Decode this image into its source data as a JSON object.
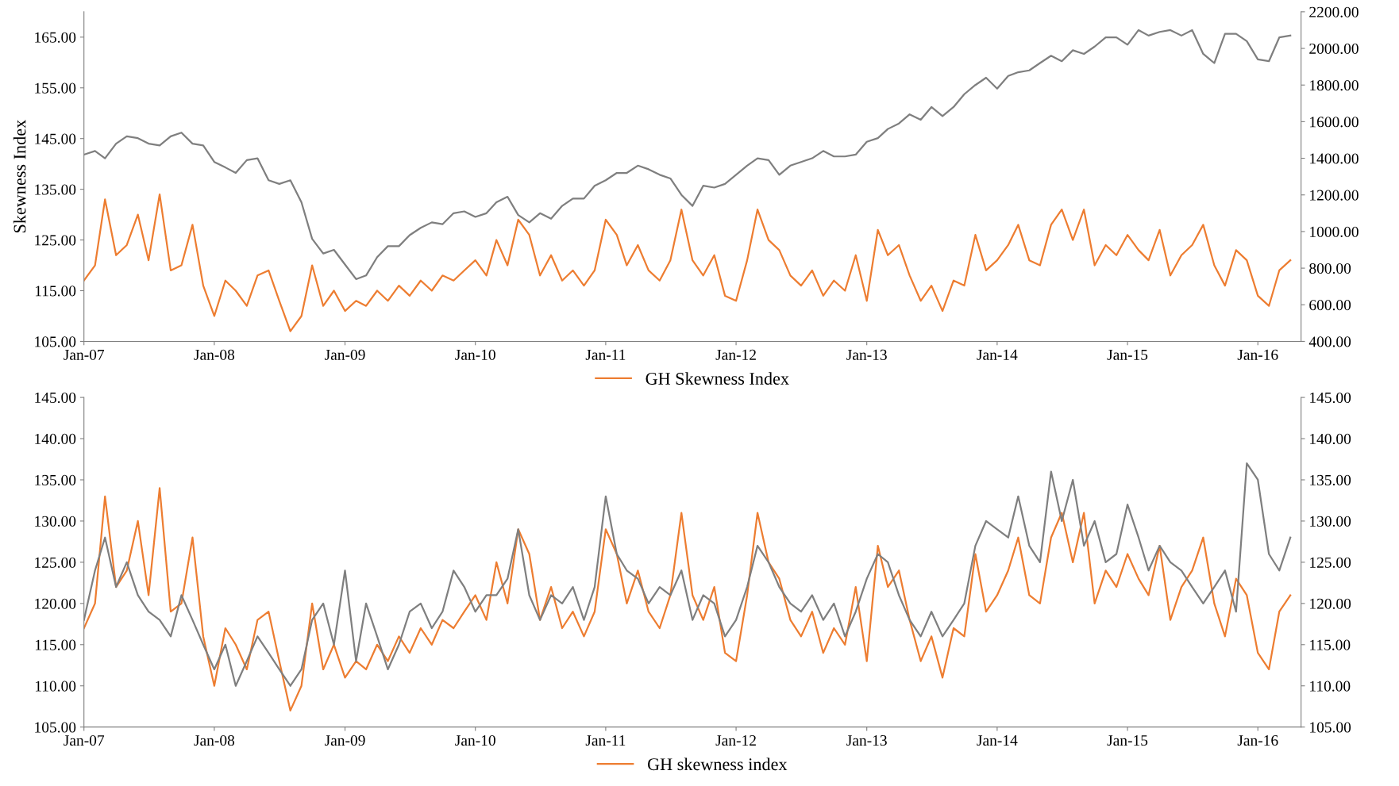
{
  "chart_data": [
    {
      "type": "line",
      "ylabel": "Skewness Index",
      "legend": "bottom",
      "grid": false,
      "marker": "none",
      "line_style": "solid",
      "x": [
        "2007-01",
        "2007-02",
        "2007-03",
        "2007-04",
        "2007-05",
        "2007-06",
        "2007-07",
        "2007-08",
        "2007-09",
        "2007-10",
        "2007-11",
        "2007-12",
        "2008-01",
        "2008-02",
        "2008-03",
        "2008-04",
        "2008-05",
        "2008-06",
        "2008-07",
        "2008-08",
        "2008-09",
        "2008-10",
        "2008-11",
        "2008-12",
        "2009-01",
        "2009-02",
        "2009-03",
        "2009-04",
        "2009-05",
        "2009-06",
        "2009-07",
        "2009-08",
        "2009-09",
        "2009-10",
        "2009-11",
        "2009-12",
        "2010-01",
        "2010-02",
        "2010-03",
        "2010-04",
        "2010-05",
        "2010-06",
        "2010-07",
        "2010-08",
        "2010-09",
        "2010-10",
        "2010-11",
        "2010-12",
        "2011-01",
        "2011-02",
        "2011-03",
        "2011-04",
        "2011-05",
        "2011-06",
        "2011-07",
        "2011-08",
        "2011-09",
        "2011-10",
        "2011-11",
        "2011-12",
        "2012-01",
        "2012-02",
        "2012-03",
        "2012-04",
        "2012-05",
        "2012-06",
        "2012-07",
        "2012-08",
        "2012-09",
        "2012-10",
        "2012-11",
        "2012-12",
        "2013-01",
        "2013-02",
        "2013-03",
        "2013-04",
        "2013-05",
        "2013-06",
        "2013-07",
        "2013-08",
        "2013-09",
        "2013-10",
        "2013-11",
        "2013-12",
        "2014-01",
        "2014-02",
        "2014-03",
        "2014-04",
        "2014-05",
        "2014-06",
        "2014-07",
        "2014-08",
        "2014-09",
        "2014-10",
        "2014-11",
        "2014-12",
        "2015-01",
        "2015-02",
        "2015-03",
        "2015-04",
        "2015-05",
        "2015-06",
        "2015-07",
        "2015-08",
        "2015-09",
        "2015-10",
        "2015-11",
        "2015-12",
        "2016-01",
        "2016-02",
        "2016-03",
        "2016-04"
      ],
      "series": [
        {
          "name": "GH Skewness Index",
          "color": "#ed7d31",
          "axis": "y",
          "values": [
            117,
            120,
            133,
            122,
            124,
            130,
            121,
            134,
            119,
            120,
            128,
            116,
            110,
            117,
            115,
            112,
            118,
            119,
            113,
            107,
            110,
            120,
            112,
            115,
            111,
            113,
            112,
            115,
            113,
            116,
            114,
            117,
            115,
            118,
            117,
            119,
            121,
            118,
            125,
            120,
            129,
            126,
            118,
            122,
            117,
            119,
            116,
            119,
            129,
            126,
            120,
            124,
            119,
            117,
            121,
            131,
            121,
            118,
            122,
            114,
            113,
            121,
            131,
            125,
            123,
            118,
            116,
            119,
            114,
            117,
            115,
            122,
            113,
            127,
            122,
            124,
            118,
            113,
            116,
            111,
            117,
            116,
            126,
            119,
            121,
            124,
            128,
            121,
            120,
            128,
            131,
            125,
            131,
            120,
            124,
            122,
            126,
            123,
            121,
            127,
            118,
            122,
            124,
            128,
            120,
            116,
            123,
            121,
            114,
            112,
            119,
            121
          ]
        },
        {
          "color": "#7f7f7f",
          "axis": "y2",
          "values": [
            1420,
            1440,
            1400,
            1480,
            1520,
            1510,
            1480,
            1470,
            1520,
            1540,
            1480,
            1470,
            1380,
            1350,
            1320,
            1390,
            1400,
            1280,
            1260,
            1280,
            1160,
            960,
            880,
            900,
            820,
            740,
            760,
            860,
            920,
            920,
            980,
            1020,
            1050,
            1040,
            1100,
            1110,
            1080,
            1100,
            1160,
            1190,
            1090,
            1050,
            1100,
            1070,
            1140,
            1180,
            1180,
            1250,
            1280,
            1320,
            1320,
            1360,
            1340,
            1310,
            1290,
            1200,
            1140,
            1250,
            1240,
            1260,
            1310,
            1360,
            1400,
            1390,
            1310,
            1360,
            1380,
            1400,
            1440,
            1410,
            1410,
            1420,
            1490,
            1510,
            1560,
            1590,
            1640,
            1610,
            1680,
            1630,
            1680,
            1750,
            1800,
            1840,
            1780,
            1850,
            1870,
            1880,
            1920,
            1960,
            1930,
            1990,
            1970,
            2010,
            2060,
            2060,
            2020,
            2100,
            2070,
            2090,
            2100,
            2070,
            2100,
            1970,
            1920,
            2080,
            2080,
            2040,
            1940,
            1930,
            2060,
            2070
          ]
        }
      ],
      "xlim": [
        "2007-01-01",
        "2016-05-01"
      ],
      "xticks": [
        {
          "value": "2007-01-01",
          "label": "Jan-07"
        },
        {
          "value": "2008-01-01",
          "label": "Jan-08"
        },
        {
          "value": "2009-01-01",
          "label": "Jan-09"
        },
        {
          "value": "2010-01-01",
          "label": "Jan-10"
        },
        {
          "value": "2011-01-01",
          "label": "Jan-11"
        },
        {
          "value": "2012-01-01",
          "label": "Jan-12"
        },
        {
          "value": "2013-01-01",
          "label": "Jan-13"
        },
        {
          "value": "2014-01-01",
          "label": "Jan-14"
        },
        {
          "value": "2015-01-01",
          "label": "Jan-15"
        },
        {
          "value": "2016-01-01",
          "label": "Jan-16"
        }
      ],
      "ylim": [
        105,
        170
      ],
      "yticks": [
        {
          "value": 105,
          "label": "105.00"
        },
        {
          "value": 115,
          "label": "115.00"
        },
        {
          "value": 125,
          "label": "125.00"
        },
        {
          "value": 135,
          "label": "135.00"
        },
        {
          "value": 145,
          "label": "145.00"
        },
        {
          "value": 155,
          "label": "155.00"
        },
        {
          "value": 165,
          "label": "165.00"
        }
      ],
      "y2lim": [
        400,
        2200
      ],
      "y2ticks": [
        {
          "value": 400,
          "label": "400.00"
        },
        {
          "value": 600,
          "label": "600.00"
        },
        {
          "value": 800,
          "label": "800.00"
        },
        {
          "value": 1000,
          "label": "1000.00"
        },
        {
          "value": 1200,
          "label": "1200.00"
        },
        {
          "value": 1400,
          "label": "1400.00"
        },
        {
          "value": 1600,
          "label": "1600.00"
        },
        {
          "value": 1800,
          "label": "1800.00"
        },
        {
          "value": 2000,
          "label": "2000.00"
        },
        {
          "value": 2200,
          "label": "2200.00"
        }
      ]
    },
    {
      "type": "line",
      "legend": "bottom",
      "grid": false,
      "marker": "none",
      "line_style": "solid",
      "x": [
        "2007-01",
        "2007-02",
        "2007-03",
        "2007-04",
        "2007-05",
        "2007-06",
        "2007-07",
        "2007-08",
        "2007-09",
        "2007-10",
        "2007-11",
        "2007-12",
        "2008-01",
        "2008-02",
        "2008-03",
        "2008-04",
        "2008-05",
        "2008-06",
        "2008-07",
        "2008-08",
        "2008-09",
        "2008-10",
        "2008-11",
        "2008-12",
        "2009-01",
        "2009-02",
        "2009-03",
        "2009-04",
        "2009-05",
        "2009-06",
        "2009-07",
        "2009-08",
        "2009-09",
        "2009-10",
        "2009-11",
        "2009-12",
        "2010-01",
        "2010-02",
        "2010-03",
        "2010-04",
        "2010-05",
        "2010-06",
        "2010-07",
        "2010-08",
        "2010-09",
        "2010-10",
        "2010-11",
        "2010-12",
        "2011-01",
        "2011-02",
        "2011-03",
        "2011-04",
        "2011-05",
        "2011-06",
        "2011-07",
        "2011-08",
        "2011-09",
        "2011-10",
        "2011-11",
        "2011-12",
        "2012-01",
        "2012-02",
        "2012-03",
        "2012-04",
        "2012-05",
        "2012-06",
        "2012-07",
        "2012-08",
        "2012-09",
        "2012-10",
        "2012-11",
        "2012-12",
        "2013-01",
        "2013-02",
        "2013-03",
        "2013-04",
        "2013-05",
        "2013-06",
        "2013-07",
        "2013-08",
        "2013-09",
        "2013-10",
        "2013-11",
        "2013-12",
        "2014-01",
        "2014-02",
        "2014-03",
        "2014-04",
        "2014-05",
        "2014-06",
        "2014-07",
        "2014-08",
        "2014-09",
        "2014-10",
        "2014-11",
        "2014-12",
        "2015-01",
        "2015-02",
        "2015-03",
        "2015-04",
        "2015-05",
        "2015-06",
        "2015-07",
        "2015-08",
        "2015-09",
        "2015-10",
        "2015-11",
        "2015-12",
        "2016-01",
        "2016-02",
        "2016-03",
        "2016-04"
      ],
      "series": [
        {
          "name": "GH skewness index",
          "color": "#ed7d31",
          "axis": "y",
          "values": [
            117,
            120,
            133,
            122,
            124,
            130,
            121,
            134,
            119,
            120,
            128,
            116,
            110,
            117,
            115,
            112,
            118,
            119,
            113,
            107,
            110,
            120,
            112,
            115,
            111,
            113,
            112,
            115,
            113,
            116,
            114,
            117,
            115,
            118,
            117,
            119,
            121,
            118,
            125,
            120,
            129,
            126,
            118,
            122,
            117,
            119,
            116,
            119,
            129,
            126,
            120,
            124,
            119,
            117,
            121,
            131,
            121,
            118,
            122,
            114,
            113,
            121,
            131,
            125,
            123,
            118,
            116,
            119,
            114,
            117,
            115,
            122,
            113,
            127,
            122,
            124,
            118,
            113,
            116,
            111,
            117,
            116,
            126,
            119,
            121,
            124,
            128,
            121,
            120,
            128,
            131,
            125,
            131,
            120,
            124,
            122,
            126,
            123,
            121,
            127,
            118,
            122,
            124,
            128,
            120,
            116,
            123,
            121,
            114,
            112,
            119,
            121
          ]
        },
        {
          "color": "#7f7f7f",
          "axis": "y",
          "values": [
            118,
            124,
            128,
            122,
            125,
            121,
            119,
            118,
            116,
            121,
            118,
            115,
            112,
            115,
            110,
            113,
            116,
            114,
            112,
            110,
            112,
            118,
            120,
            115,
            124,
            113,
            120,
            116,
            112,
            115,
            119,
            120,
            117,
            119,
            124,
            122,
            119,
            121,
            121,
            123,
            129,
            121,
            118,
            121,
            120,
            122,
            118,
            122,
            133,
            126,
            124,
            123,
            120,
            122,
            121,
            124,
            118,
            121,
            120,
            116,
            118,
            122,
            127,
            125,
            122,
            120,
            119,
            121,
            118,
            120,
            116,
            119,
            123,
            126,
            125,
            121,
            118,
            116,
            119,
            116,
            118,
            120,
            127,
            130,
            129,
            128,
            133,
            127,
            125,
            136,
            130,
            135,
            127,
            130,
            125,
            126,
            132,
            128,
            124,
            127,
            125,
            124,
            122,
            120,
            122,
            124,
            119,
            137,
            135,
            126,
            124,
            128
          ]
        }
      ],
      "xlim": [
        "2007-01-01",
        "2016-05-01"
      ],
      "xticks": [
        {
          "value": "2007-01-01",
          "label": "Jan-07"
        },
        {
          "value": "2008-01-01",
          "label": "Jan-08"
        },
        {
          "value": "2009-01-01",
          "label": "Jan-09"
        },
        {
          "value": "2010-01-01",
          "label": "Jan-10"
        },
        {
          "value": "2011-01-01",
          "label": "Jan-11"
        },
        {
          "value": "2012-01-01",
          "label": "Jan-12"
        },
        {
          "value": "2013-01-01",
          "label": "Jan-13"
        },
        {
          "value": "2014-01-01",
          "label": "Jan-14"
        },
        {
          "value": "2015-01-01",
          "label": "Jan-15"
        },
        {
          "value": "2016-01-01",
          "label": "Jan-16"
        }
      ],
      "ylim": [
        105,
        145
      ],
      "yticks": [
        {
          "value": 105,
          "label": "105.00"
        },
        {
          "value": 110,
          "label": "110.00"
        },
        {
          "value": 115,
          "label": "115.00"
        },
        {
          "value": 120,
          "label": "120.00"
        },
        {
          "value": 125,
          "label": "125.00"
        },
        {
          "value": 130,
          "label": "130.00"
        },
        {
          "value": 135,
          "label": "135.00"
        },
        {
          "value": 140,
          "label": "140.00"
        },
        {
          "value": 145,
          "label": "145.00"
        }
      ],
      "y2lim": [
        105,
        145
      ],
      "y2ticks": [
        {
          "value": 105,
          "label": "105.00"
        },
        {
          "value": 110,
          "label": "110.00"
        },
        {
          "value": 115,
          "label": "115.00"
        },
        {
          "value": 120,
          "label": "120.00"
        },
        {
          "value": 125,
          "label": "125.00"
        },
        {
          "value": 130,
          "label": "130.00"
        },
        {
          "value": 135,
          "label": "135.00"
        },
        {
          "value": 140,
          "label": "140.00"
        },
        {
          "value": 145,
          "label": "145.00"
        }
      ]
    }
  ]
}
